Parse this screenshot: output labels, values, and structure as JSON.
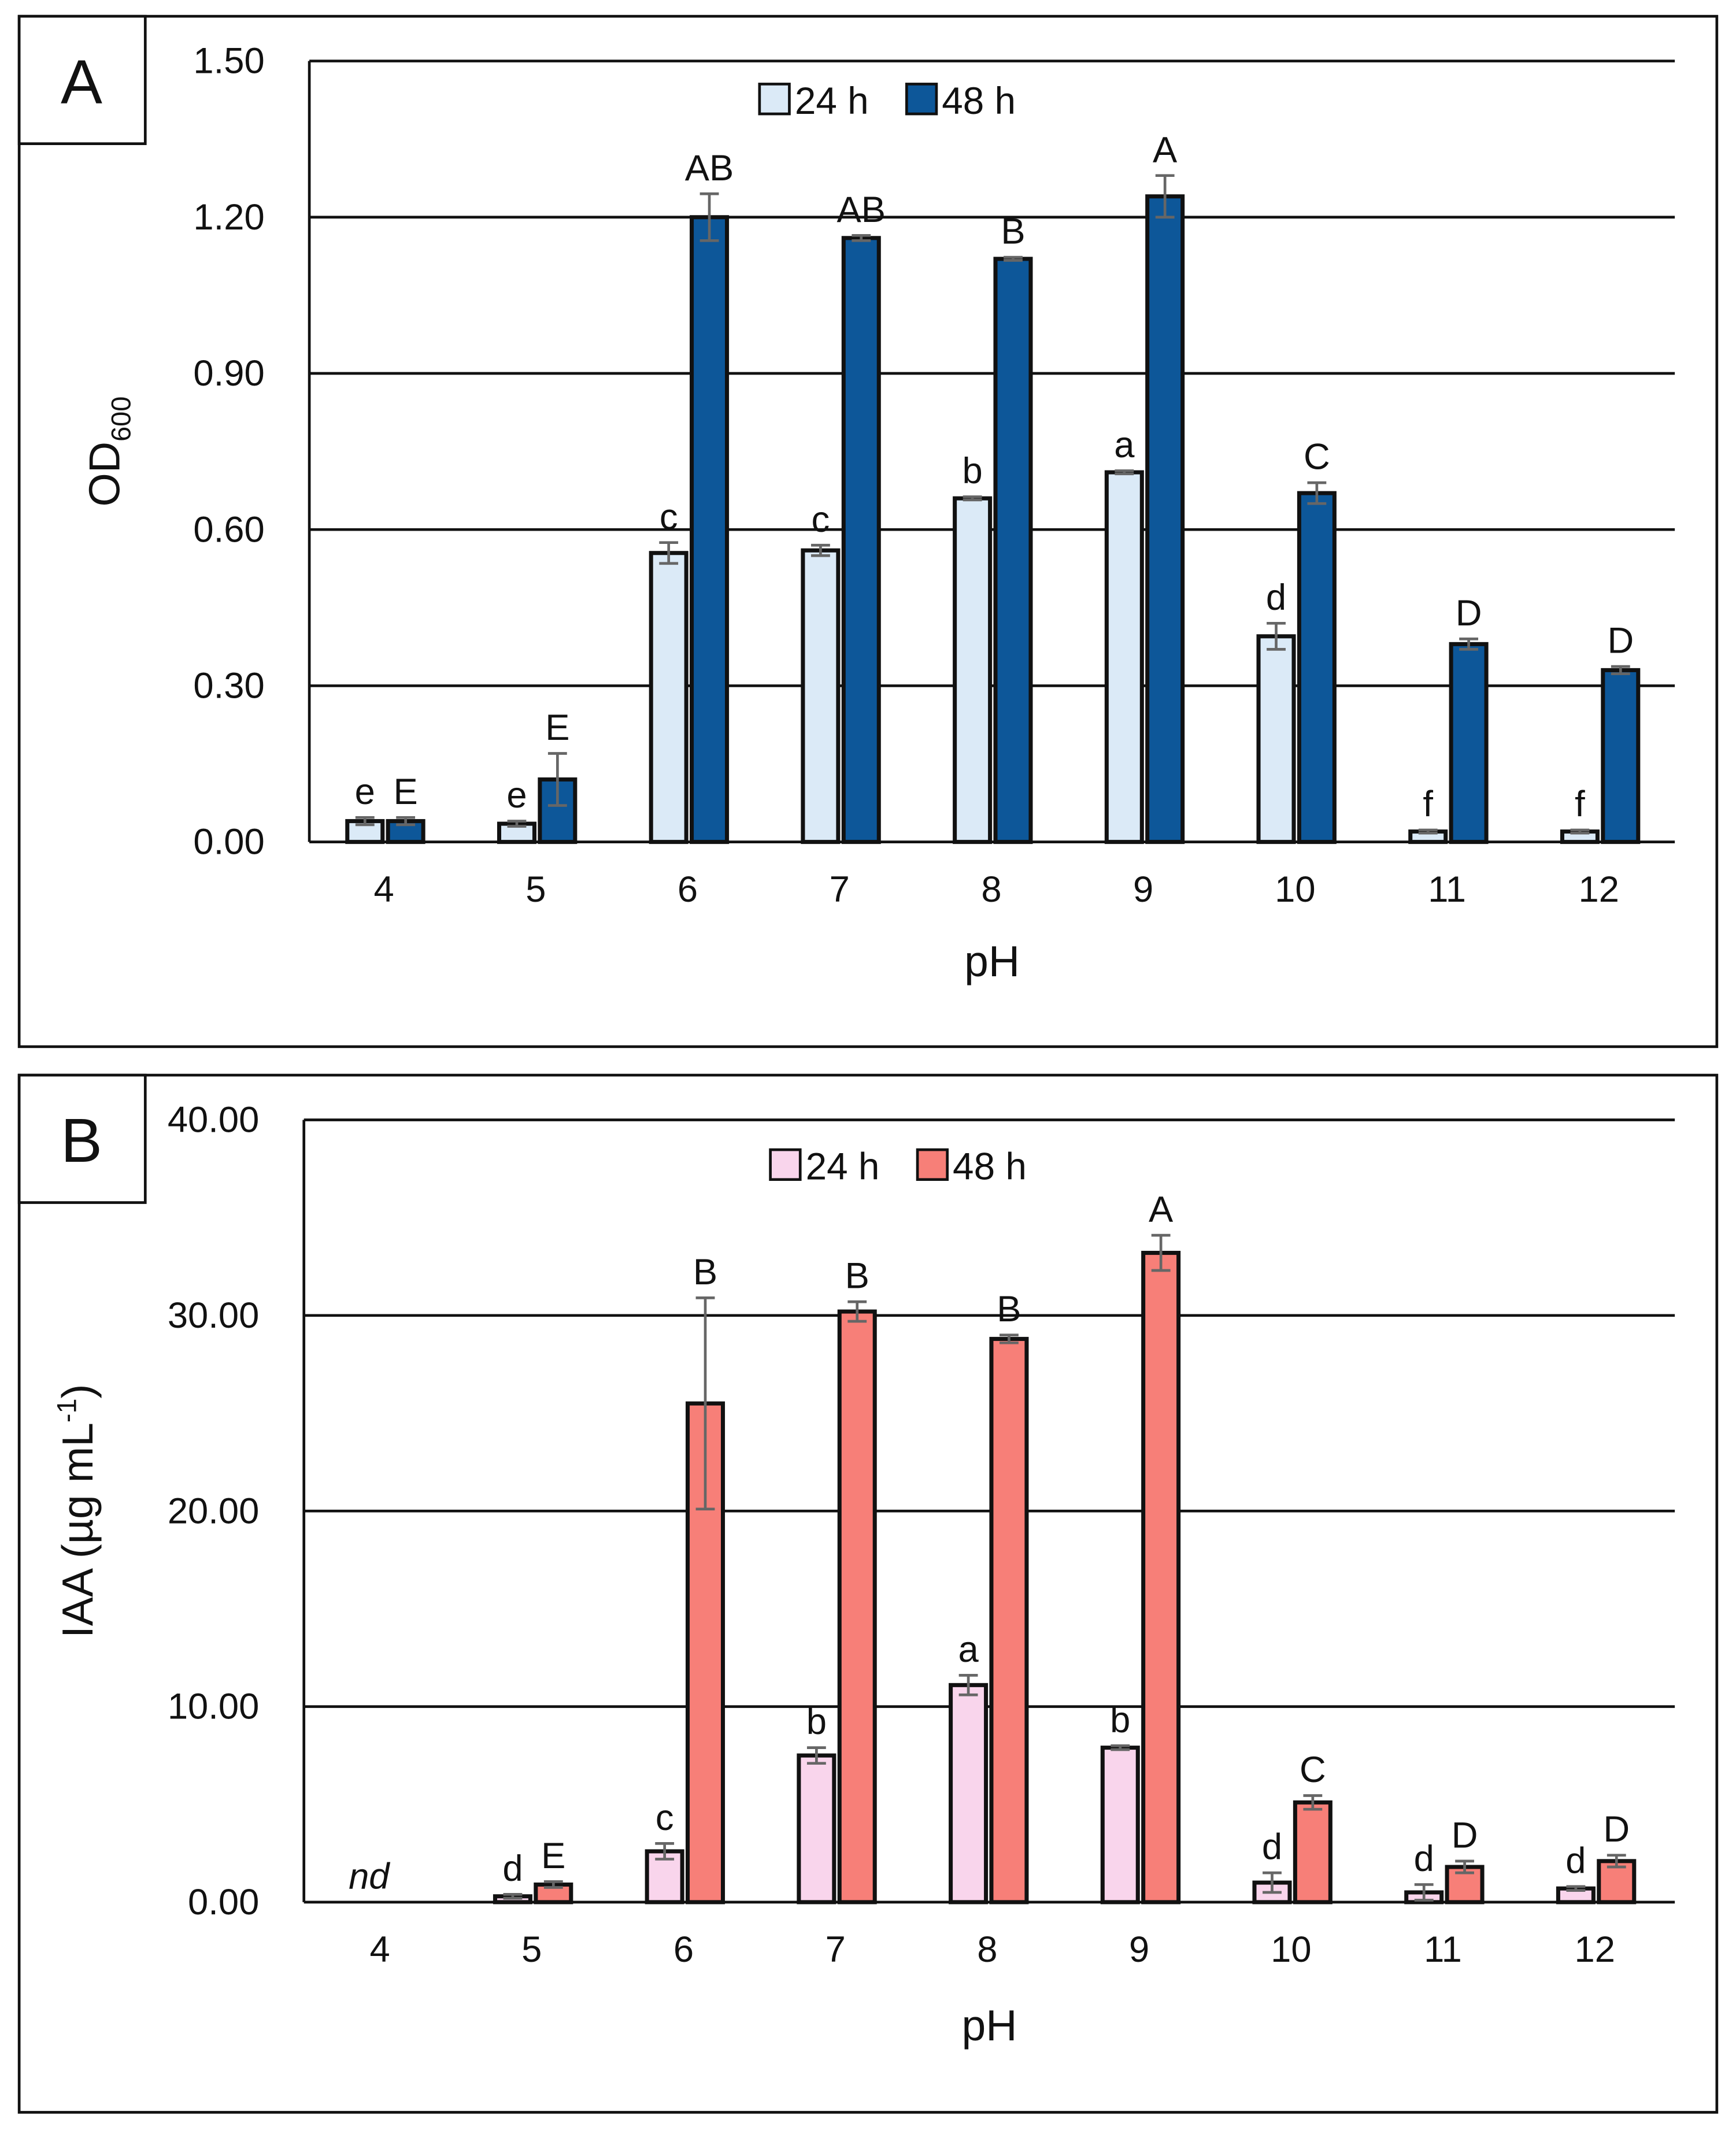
{
  "chart_data": [
    {
      "type": "bar",
      "panel": "A",
      "xlabel": "pH",
      "ylabel": "OD",
      "ylabel_sub": "600",
      "categories": [
        "4",
        "5",
        "6",
        "7",
        "8",
        "9",
        "10",
        "11",
        "12"
      ],
      "ylim": [
        0,
        1.5
      ],
      "yticks": [
        {
          "value": 0,
          "label": "0.00"
        },
        {
          "value": 0.3,
          "label": "0.30"
        },
        {
          "value": 0.6,
          "label": "0.60"
        },
        {
          "value": 0.9,
          "label": "0.90"
        },
        {
          "value": 1.2,
          "label": "1.20"
        },
        {
          "value": 1.5,
          "label": "1.50"
        }
      ],
      "grid": true,
      "series": [
        {
          "name": "24 h",
          "color": "#dbeaf7",
          "values": [
            0.04,
            0.035,
            0.555,
            0.56,
            0.66,
            0.71,
            0.395,
            0.02,
            0.02
          ],
          "errors": [
            0.007,
            0.005,
            0.02,
            0.01,
            0.003,
            0.003,
            0.025,
            0.003,
            0.003
          ],
          "letters": [
            "e",
            "e",
            "c",
            "c",
            "b",
            "a",
            "d",
            "f",
            "f"
          ]
        },
        {
          "name": "48 h",
          "color": "#0d5799",
          "values": [
            0.04,
            0.12,
            1.2,
            1.16,
            1.12,
            1.24,
            0.67,
            0.38,
            0.33
          ],
          "errors": [
            0.007,
            0.05,
            0.045,
            0.005,
            0.003,
            0.04,
            0.02,
            0.01,
            0.007
          ],
          "letters": [
            "E",
            "E",
            "AB",
            "AB",
            "B",
            "A",
            "C",
            "D",
            "D"
          ]
        }
      ]
    },
    {
      "type": "bar",
      "panel": "B",
      "xlabel": "pH",
      "ylabel": "IAA (µg mL",
      "ylabel_sup": "-1",
      "ylabel_end": ")",
      "categories": [
        "4",
        "5",
        "6",
        "7",
        "8",
        "9",
        "10",
        "11",
        "12"
      ],
      "ylim": [
        0,
        40
      ],
      "yticks": [
        {
          "value": 0,
          "label": "0.00"
        },
        {
          "value": 10,
          "label": "10.00"
        },
        {
          "value": 20,
          "label": "20.00"
        },
        {
          "value": 30,
          "label": "30.00"
        },
        {
          "value": 40,
          "label": "40.00"
        }
      ],
      "grid": true,
      "annotations": [
        {
          "text": "nd",
          "category": "4"
        }
      ],
      "series": [
        {
          "name": "24 h",
          "color": "#f9d5ec",
          "values": [
            null,
            0.3,
            2.6,
            7.5,
            11.1,
            7.9,
            1.0,
            0.5,
            0.7
          ],
          "errors": [
            null,
            0.1,
            0.4,
            0.4,
            0.5,
            0.1,
            0.5,
            0.4,
            0.1
          ],
          "letters": [
            null,
            "d",
            "c",
            "b",
            "a",
            "b",
            "d",
            "d",
            "d"
          ]
        },
        {
          "name": "48 h",
          "color": "#f77f78",
          "values": [
            null,
            0.9,
            25.5,
            30.2,
            28.8,
            33.2,
            5.1,
            1.8,
            2.1
          ],
          "errors": [
            null,
            0.15,
            5.4,
            0.5,
            0.2,
            0.9,
            0.35,
            0.3,
            0.3
          ],
          "letters": [
            null,
            "E",
            "B",
            "B",
            "B",
            "A",
            "C",
            "D",
            "D"
          ]
        }
      ]
    }
  ]
}
